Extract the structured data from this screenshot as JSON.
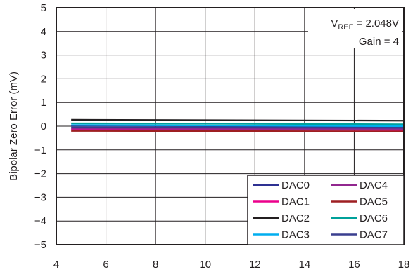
{
  "chart_data": {
    "type": "line",
    "title": "",
    "xlabel": "",
    "ylabel": "Bipolar Zero Error (mV)",
    "xlim": [
      4,
      18
    ],
    "ylim": [
      -5,
      5
    ],
    "xticks": [
      "4",
      "6",
      "8",
      "10",
      "12",
      "14",
      "16",
      "18"
    ],
    "yticks": [
      "5",
      "4",
      "3",
      "2",
      "1",
      "0",
      "−1",
      "−2",
      "−3",
      "−4",
      "−5"
    ],
    "grid": true,
    "annotation": {
      "vref_prefix": "V",
      "vref_sub": "REF",
      "vref_value": " = 2.048V",
      "gain": "Gain = 4"
    },
    "legend_position": "bottom-right",
    "series": [
      {
        "name": "DAC0",
        "color": "#2e3192",
        "x": [
          4.6,
          18
        ],
        "y": [
          0.02,
          -0.02
        ]
      },
      {
        "name": "DAC1",
        "color": "#ec008c",
        "x": [
          4.6,
          18
        ],
        "y": [
          -0.14,
          -0.16
        ]
      },
      {
        "name": "DAC2",
        "color": "#231f20",
        "x": [
          4.6,
          18
        ],
        "y": [
          0.27,
          0.23
        ]
      },
      {
        "name": "DAC3",
        "color": "#00aeef",
        "x": [
          4.6,
          18
        ],
        "y": [
          0.05,
          0.0
        ]
      },
      {
        "name": "DAC4",
        "color": "#92278f",
        "x": [
          4.6,
          18
        ],
        "y": [
          -0.1,
          -0.12
        ]
      },
      {
        "name": "DAC5",
        "color": "#9e1f22",
        "x": [
          4.6,
          18
        ],
        "y": [
          -0.2,
          -0.22
        ]
      },
      {
        "name": "DAC6",
        "color": "#00a19a",
        "x": [
          4.6,
          18
        ],
        "y": [
          0.12,
          0.08
        ]
      },
      {
        "name": "DAC7",
        "color": "#3a3f8f",
        "x": [
          4.6,
          18
        ],
        "y": [
          -0.05,
          -0.07
        ]
      }
    ]
  }
}
